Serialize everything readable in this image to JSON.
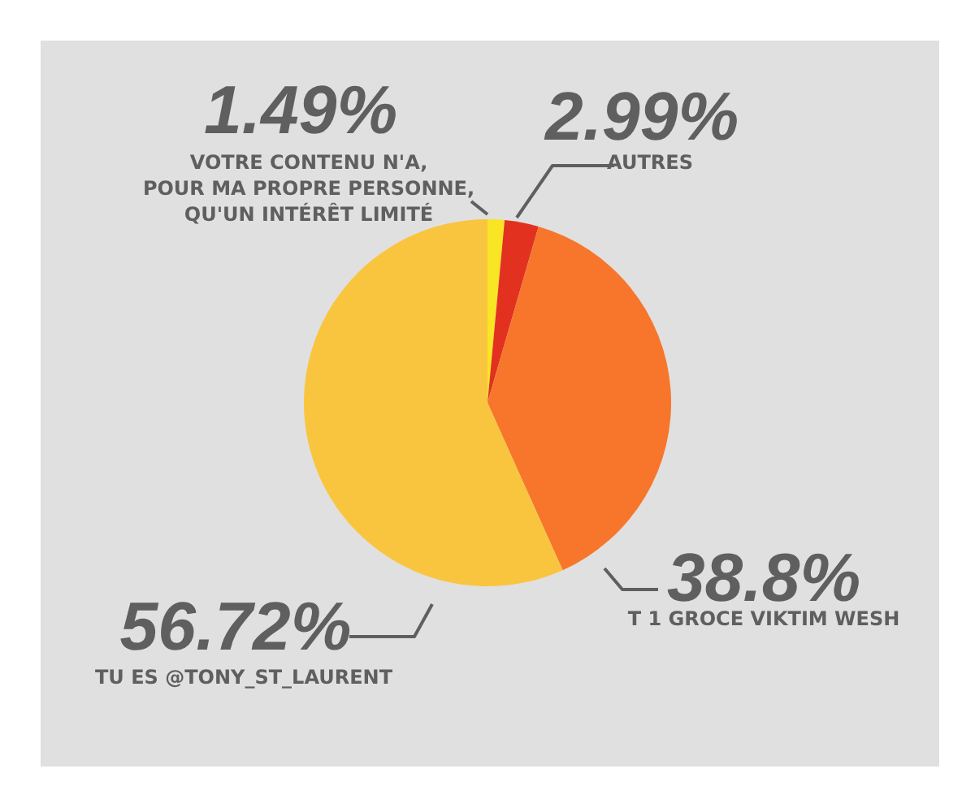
{
  "chart_data": {
    "type": "pie",
    "categories": [
      "VOTRE CONTENU N'A,\nPOUR MA PROPRE PERSONNE,\nQU'UN INTÉRÊT LIMITÉ",
      "AUTRES",
      "T 1 GROCE VIKTIM WESH",
      "TU ES @TONY_ST_LAURENT"
    ],
    "values": [
      1.49,
      2.99,
      38.8,
      56.72
    ],
    "colors": [
      "#f9e523",
      "#e2321f",
      "#f7762b",
      "#f9c53f"
    ],
    "value_labels": [
      "1.49%",
      "2.99%",
      "38.8%",
      "56.72%"
    ],
    "legend": false
  }
}
